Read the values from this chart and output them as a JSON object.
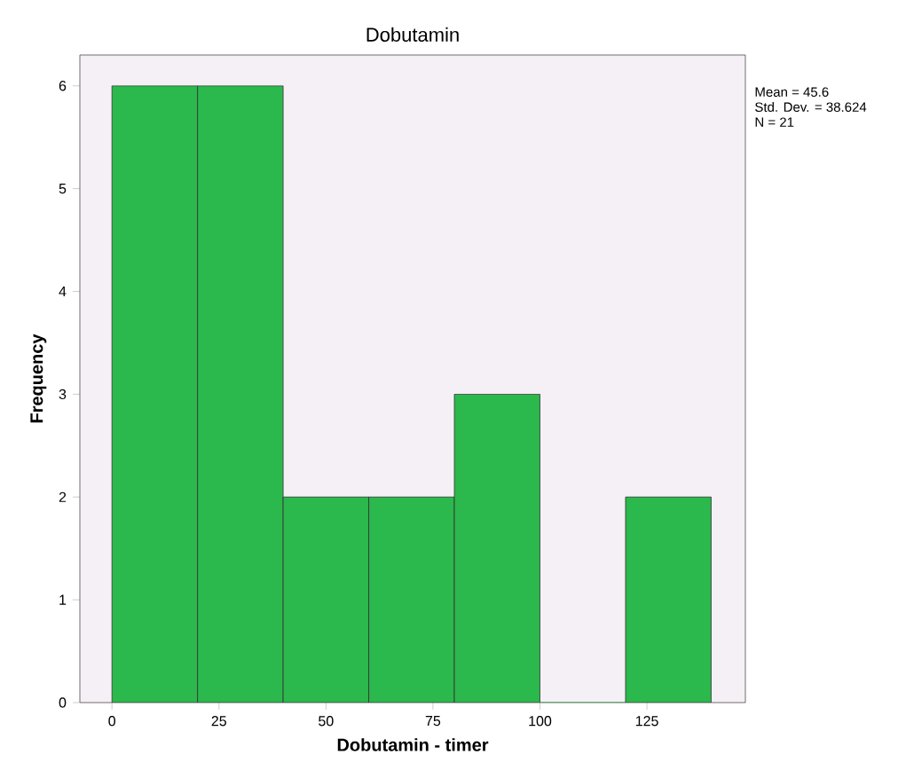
{
  "chart_data": {
    "type": "histogram",
    "title": "Dobutamin",
    "xlabel": "Dobutamin - timer",
    "ylabel": "Frequency",
    "bins": [
      0,
      20,
      40,
      60,
      80,
      100,
      120,
      140
    ],
    "values": [
      6,
      6,
      2,
      2,
      3,
      0,
      2
    ],
    "color": "#2bb84c",
    "xlim": [
      -7.5,
      148
    ],
    "xticks": [
      0,
      25,
      50,
      75,
      100,
      125
    ],
    "ylim": [
      0,
      6.3
    ],
    "yticks": [
      0,
      1,
      2,
      3,
      4,
      5,
      6
    ],
    "annotations": [
      "Mean = 45.6",
      "Std. Dev. = 38.624",
      "N = 21"
    ]
  }
}
